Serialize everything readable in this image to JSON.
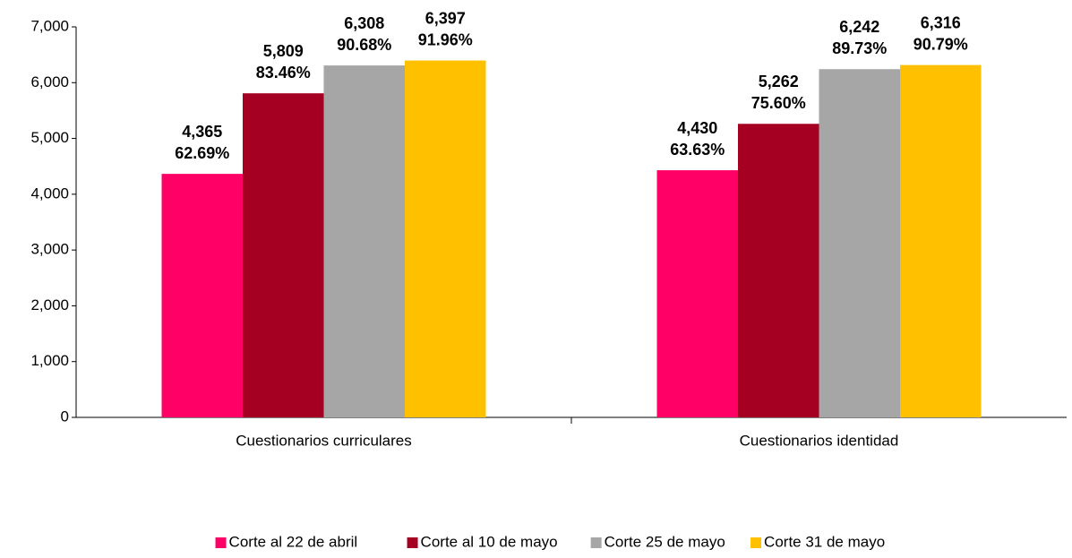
{
  "chart_data": {
    "type": "bar",
    "categories": [
      "Cuestionarios curriculares",
      "Cuestionarios identidad"
    ],
    "series": [
      {
        "name": "Corte al 22 de abril",
        "color": "#ff0066",
        "values": [
          4365,
          4430
        ],
        "value_labels": [
          "4,365",
          "4,430"
        ],
        "percents": [
          62.69,
          63.63
        ],
        "percent_labels": [
          "62.69%",
          "63.63%"
        ]
      },
      {
        "name": "Corte al 10 de mayo",
        "color": "#a50021",
        "values": [
          5809,
          5262
        ],
        "value_labels": [
          "5,809",
          "5,262"
        ],
        "percents": [
          83.46,
          75.6
        ],
        "percent_labels": [
          "83.46%",
          "75.60%"
        ]
      },
      {
        "name": "Corte 25 de mayo",
        "color": "#a6a6a6",
        "values": [
          6308,
          6242
        ],
        "value_labels": [
          "6,308",
          "6,242"
        ],
        "percents": [
          90.68,
          89.73
        ],
        "percent_labels": [
          "90.68%",
          "89.73%"
        ]
      },
      {
        "name": "Corte 31 de mayo",
        "color": "#ffc000",
        "values": [
          6397,
          6316
        ],
        "value_labels": [
          "6,397",
          "6,316"
        ],
        "percents": [
          91.96,
          90.79
        ],
        "percent_labels": [
          "91.96%",
          "90.79%"
        ]
      }
    ],
    "ylim": [
      0,
      7000
    ],
    "yticks": [
      0,
      {
        "value": 1000,
        "label": "1,000"
      },
      {
        "value": 2000,
        "label": "2,000"
      },
      {
        "value": 3000,
        "label": "3,000"
      },
      {
        "value": 4000,
        "label": "4,000"
      },
      {
        "value": 5000,
        "label": "5,000"
      },
      {
        "value": 6000,
        "label": "6,000"
      },
      {
        "value": 7000,
        "label": "7,000"
      }
    ],
    "grid": false,
    "legend": "bottom"
  }
}
